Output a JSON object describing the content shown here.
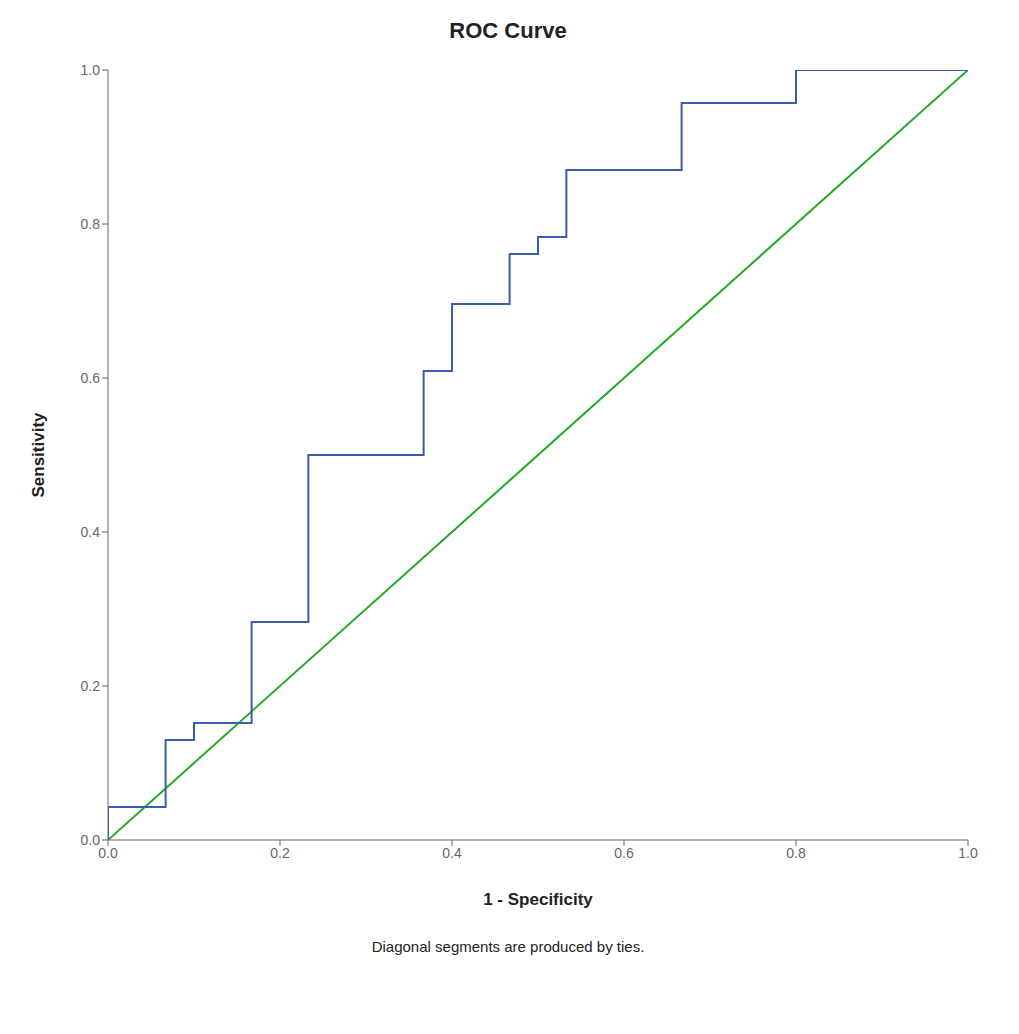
{
  "chart_data": {
    "type": "line",
    "title": "ROC Curve",
    "x_label": "1 - Specificity",
    "y_label": "Sensitivity",
    "footnote": "Diagonal segments are produced by ties.",
    "xlim": [
      0.0,
      1.0
    ],
    "ylim": [
      0.0,
      1.0
    ],
    "xticks": [
      {
        "value": 0.0,
        "label": "0.0"
      },
      0.2,
      0.4,
      0.6,
      0.8,
      {
        "value": 1.0,
        "label": "1.0"
      }
    ],
    "yticks": [
      {
        "value": 0.0,
        "label": "0.0"
      },
      0.2,
      0.4,
      0.6,
      0.8,
      {
        "value": 1.0,
        "label": "1.0"
      }
    ],
    "grid": false,
    "series": [
      {
        "color": "#22aa22",
        "x": [
          0,
          1
        ],
        "values": [
          0,
          1
        ]
      },
      {
        "color": "#3a5faa",
        "x": [
          0.0,
          0.0,
          0.067,
          0.067,
          0.1,
          0.1,
          0.167,
          0.167,
          0.233,
          0.233,
          0.333,
          0.333,
          0.367,
          0.367,
          0.4,
          0.4,
          0.467,
          0.467,
          0.5,
          0.5,
          0.533,
          0.533,
          0.567,
          0.567,
          0.6,
          0.6,
          0.667,
          0.667,
          0.8,
          0.8,
          0.833,
          0.833,
          1.0,
          1.0
        ],
        "values": [
          0.0,
          0.043,
          0.043,
          0.13,
          0.13,
          0.152,
          0.152,
          0.283,
          0.283,
          0.5,
          0.5,
          0.5,
          0.5,
          0.609,
          0.609,
          0.696,
          0.696,
          0.761,
          0.761,
          0.783,
          0.783,
          0.87,
          0.87,
          0.87,
          0.87,
          0.87,
          0.87,
          0.957,
          0.957,
          1.0,
          1.0,
          1.0,
          1.0,
          1.0
        ]
      }
    ]
  }
}
